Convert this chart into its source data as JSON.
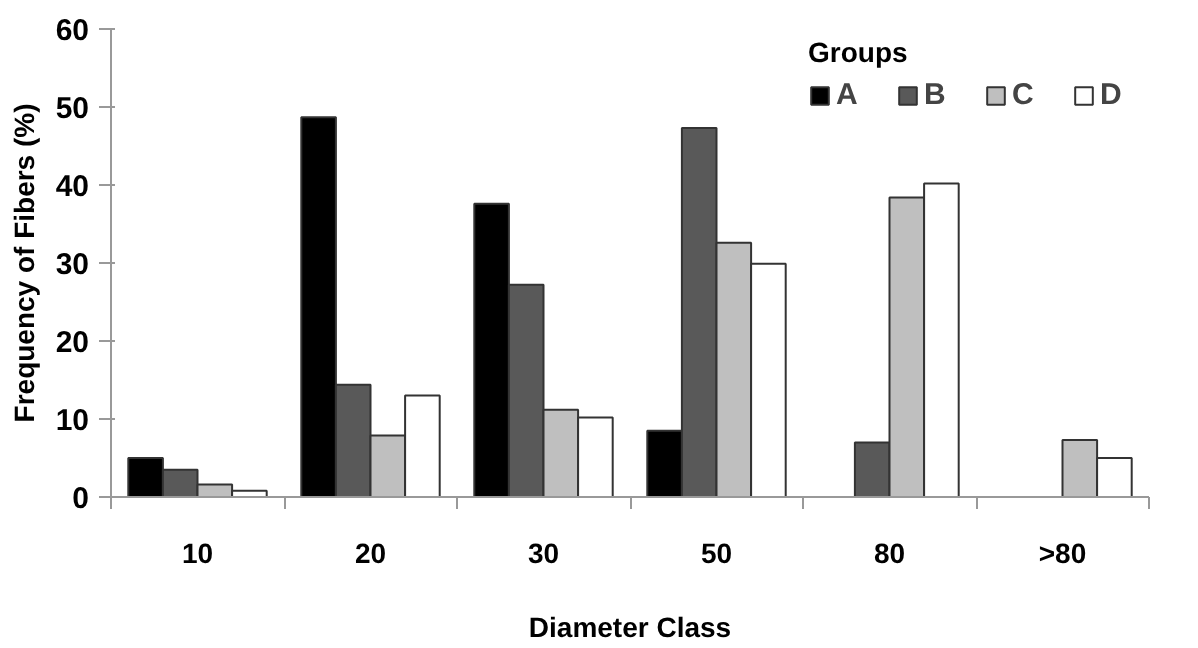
{
  "chart_data": {
    "type": "bar",
    "xlabel": "Diameter Class",
    "ylabel": "Frequency of Fibers (%)",
    "legend_title": "Groups",
    "legend": "top right",
    "grid": false,
    "categories": [
      "10",
      "20",
      "30",
      "50",
      "80",
      ">80"
    ],
    "ylim": [
      0,
      60
    ],
    "yticks": [
      0,
      10,
      20,
      30,
      40,
      50,
      60
    ],
    "series": [
      {
        "name": "A",
        "color": "#000000",
        "values": [
          5,
          48.7,
          37.6,
          8.5,
          null,
          null
        ]
      },
      {
        "name": "B",
        "color": "#595959",
        "values": [
          3.5,
          14.4,
          27.2,
          47.3,
          7,
          null
        ]
      },
      {
        "name": "C",
        "color": "#bfbfbf",
        "values": [
          1.6,
          7.9,
          11.2,
          32.6,
          38.4,
          7.3
        ]
      },
      {
        "name": "D",
        "color": "#ffffff",
        "values": [
          0.8,
          13,
          10.2,
          29.9,
          40.2,
          5
        ]
      }
    ]
  }
}
